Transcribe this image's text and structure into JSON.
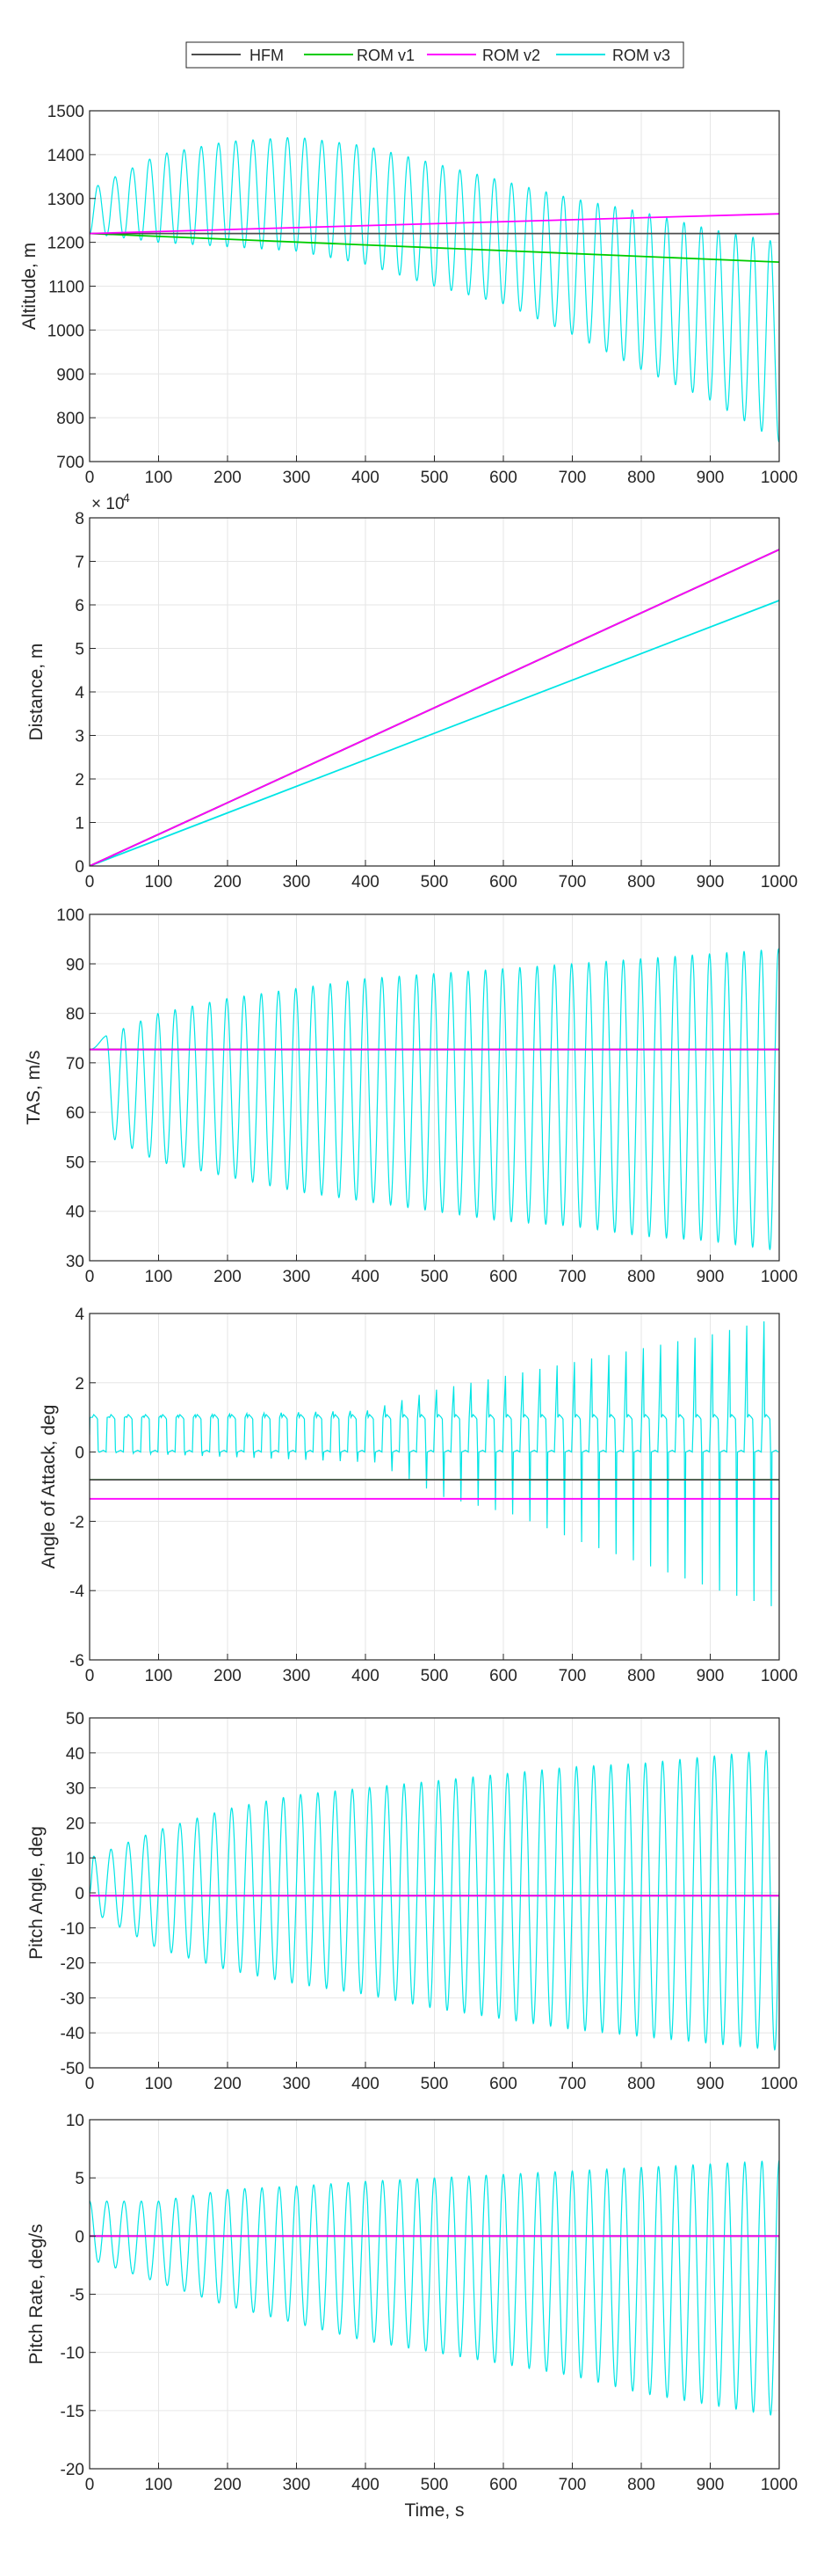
{
  "chart_data": [
    {
      "type": "line",
      "ylabel": "Altitude, m",
      "xlabel": "",
      "xlim": [
        0,
        1000
      ],
      "ylim": [
        700,
        1500
      ],
      "xticks": [
        0,
        100,
        200,
        300,
        400,
        500,
        600,
        700,
        800,
        900,
        1000
      ],
      "yticks": [
        700,
        800,
        900,
        1000,
        1100,
        1200,
        1300,
        1400,
        1500
      ],
      "grid": true,
      "legend": "top-center",
      "series": [
        {
          "name": "HFM",
          "color": "#4d4d4d",
          "x": [
            0,
            1000
          ],
          "y": [
            1220,
            1220
          ]
        },
        {
          "name": "ROM v1",
          "color": "#00cc00",
          "x": [
            0,
            1000
          ],
          "y": [
            1220,
            1155
          ]
        },
        {
          "name": "ROM v2",
          "color": "#ff00ff",
          "x": [
            0,
            1000
          ],
          "y": [
            1220,
            1265
          ]
        },
        {
          "name": "ROM v3",
          "color": "#00e5e5",
          "oscillation": {
            "period_s": 25,
            "start_value": 1220,
            "first_peak_s": 12,
            "upper_envelope": [
              [
                0,
                1320
              ],
              [
                100,
                1400
              ],
              [
                200,
                1430
              ],
              [
                300,
                1440
              ],
              [
                400,
                1420
              ],
              [
                500,
                1380
              ],
              [
                600,
                1340
              ],
              [
                700,
                1300
              ],
              [
                800,
                1270
              ],
              [
                900,
                1230
              ],
              [
                1000,
                1200
              ]
            ],
            "lower_envelope": [
              [
                0,
                1220
              ],
              [
                100,
                1200
              ],
              [
                200,
                1190
              ],
              [
                300,
                1180
              ],
              [
                400,
                1150
              ],
              [
                500,
                1100
              ],
              [
                600,
                1060
              ],
              [
                700,
                990
              ],
              [
                800,
                910
              ],
              [
                900,
                840
              ],
              [
                1000,
                745
              ]
            ]
          }
        }
      ]
    },
    {
      "type": "line",
      "ylabel": "Distance, m",
      "xlabel": "",
      "exponent": {
        "base": "× 10",
        "power": "4"
      },
      "xlim": [
        0,
        1000
      ],
      "ylim": [
        0,
        8
      ],
      "xticks": [
        0,
        100,
        200,
        300,
        400,
        500,
        600,
        700,
        800,
        900,
        1000
      ],
      "yticks": [
        0,
        1,
        2,
        3,
        4,
        5,
        6,
        7,
        8
      ],
      "grid": true,
      "series": [
        {
          "name": "HFM",
          "color": "#4d4d4d",
          "x": [
            0,
            1000
          ],
          "y": [
            0,
            7.27
          ]
        },
        {
          "name": "ROM v1",
          "color": "#00cc00",
          "x": [
            0,
            1000
          ],
          "y": [
            0,
            7.27
          ]
        },
        {
          "name": "ROM v2",
          "color": "#ff00ff",
          "x": [
            0,
            1000
          ],
          "y": [
            0,
            7.27
          ]
        },
        {
          "name": "ROM v3",
          "color": "#00e5e5",
          "x": [
            0,
            1000
          ],
          "y": [
            0,
            6.1
          ]
        }
      ]
    },
    {
      "type": "line",
      "ylabel": "TAS, m/s",
      "xlabel": "",
      "xlim": [
        0,
        1000
      ],
      "ylim": [
        30,
        100
      ],
      "xticks": [
        0,
        100,
        200,
        300,
        400,
        500,
        600,
        700,
        800,
        900,
        1000
      ],
      "yticks": [
        30,
        40,
        50,
        60,
        70,
        80,
        90,
        100
      ],
      "grid": true,
      "series": [
        {
          "name": "HFM",
          "color": "#4d4d4d",
          "x": [
            0,
            1000
          ],
          "y": [
            72.7,
            72.7
          ]
        },
        {
          "name": "ROM v1",
          "color": "#00cc00",
          "x": [
            0,
            1000
          ],
          "y": [
            72.7,
            72.7
          ]
        },
        {
          "name": "ROM v2",
          "color": "#ff00ff",
          "x": [
            0,
            1000
          ],
          "y": [
            72.7,
            72.7
          ]
        },
        {
          "name": "ROM v3",
          "color": "#00e5e5",
          "oscillation": {
            "period_s": 25,
            "start_value": 72.7,
            "first_peak_s": 24,
            "upper_envelope": [
              [
                0,
                74
              ],
              [
                100,
                80
              ],
              [
                200,
                83
              ],
              [
                300,
                85
              ],
              [
                400,
                87
              ],
              [
                500,
                88
              ],
              [
                600,
                89
              ],
              [
                700,
                90
              ],
              [
                800,
                91
              ],
              [
                900,
                92
              ],
              [
                1000,
                93
              ]
            ],
            "lower_envelope": [
              [
                0,
                57
              ],
              [
                100,
                50
              ],
              [
                200,
                47
              ],
              [
                300,
                44
              ],
              [
                400,
                42
              ],
              [
                500,
                40
              ],
              [
                600,
                38
              ],
              [
                700,
                37
              ],
              [
                800,
                35
              ],
              [
                900,
                34
              ],
              [
                1000,
                32
              ]
            ]
          }
        }
      ]
    },
    {
      "type": "line",
      "ylabel": "Angle of Attack, deg",
      "xlabel": "",
      "xlim": [
        0,
        1000
      ],
      "ylim": [
        -6,
        4
      ],
      "xticks": [
        0,
        100,
        200,
        300,
        400,
        500,
        600,
        700,
        800,
        900,
        1000
      ],
      "yticks": [
        -6,
        -4,
        -2,
        0,
        2,
        4
      ],
      "grid": true,
      "series": [
        {
          "name": "HFM",
          "color": "#4d4d4d",
          "x": [
            0,
            1000
          ],
          "y": [
            -0.8,
            -0.8
          ]
        },
        {
          "name": "ROM v1",
          "color": "#00cc00",
          "x": [
            0,
            1000
          ],
          "y": [
            -0.8,
            -0.8
          ]
        },
        {
          "name": "ROM v2",
          "color": "#ff00ff",
          "x": [
            0,
            1000
          ],
          "y": [
            -1.35,
            -1.35
          ]
        },
        {
          "name": "ROM v3",
          "color": "#00e5e5",
          "pulses": {
            "period_s": 25,
            "low": 0,
            "high": 1,
            "spike_up": [
              [
                0,
                1
              ],
              [
                400,
                1.2
              ],
              [
                500,
                1.8
              ],
              [
                600,
                2.2
              ],
              [
                700,
                2.6
              ],
              [
                800,
                3.0
              ],
              [
                900,
                3.4
              ],
              [
                1000,
                3.9
              ]
            ],
            "spike_down": [
              [
                0,
                0
              ],
              [
                400,
                -0.3
              ],
              [
                500,
                -1.3
              ],
              [
                600,
                -1.8
              ],
              [
                700,
                -2.6
              ],
              [
                800,
                -3.3
              ],
              [
                900,
                -4.0
              ],
              [
                1000,
                -4.6
              ]
            ]
          }
        }
      ]
    },
    {
      "type": "line",
      "ylabel": "Pitch Angle, deg",
      "xlabel": "",
      "xlim": [
        0,
        1000
      ],
      "ylim": [
        -50,
        50
      ],
      "xticks": [
        0,
        100,
        200,
        300,
        400,
        500,
        600,
        700,
        800,
        900,
        1000
      ],
      "yticks": [
        -50,
        -40,
        -30,
        -20,
        -10,
        0,
        10,
        20,
        30,
        40,
        50
      ],
      "grid": true,
      "series": [
        {
          "name": "HFM",
          "color": "#4d4d4d",
          "x": [
            0,
            1000
          ],
          "y": [
            -0.8,
            -0.8
          ]
        },
        {
          "name": "ROM v1",
          "color": "#00cc00",
          "x": [
            0,
            1000
          ],
          "y": [
            -0.8,
            -0.8
          ]
        },
        {
          "name": "ROM v2",
          "color": "#ff00ff",
          "x": [
            0,
            1000
          ],
          "y": [
            -0.8,
            -0.8
          ]
        },
        {
          "name": "ROM v3",
          "color": "#00e5e5",
          "oscillation": {
            "period_s": 25,
            "start_value": 0,
            "first_peak_s": 6,
            "upper_envelope": [
              [
                0,
                10
              ],
              [
                100,
                18
              ],
              [
                200,
                24
              ],
              [
                300,
                28
              ],
              [
                400,
                30
              ],
              [
                500,
                32
              ],
              [
                600,
                34
              ],
              [
                700,
                36
              ],
              [
                800,
                37
              ],
              [
                900,
                39
              ],
              [
                1000,
                41
              ]
            ],
            "lower_envelope": [
              [
                0,
                -5
              ],
              [
                100,
                -16
              ],
              [
                200,
                -22
              ],
              [
                300,
                -26
              ],
              [
                400,
                -29
              ],
              [
                500,
                -33
              ],
              [
                600,
                -36
              ],
              [
                700,
                -39
              ],
              [
                800,
                -41
              ],
              [
                900,
                -43
              ],
              [
                1000,
                -45
              ]
            ]
          }
        }
      ]
    },
    {
      "type": "line",
      "ylabel": "Pitch Rate, deg/s",
      "xlabel": "Time, s",
      "xlim": [
        0,
        1000
      ],
      "ylim": [
        -20,
        10
      ],
      "xticks": [
        0,
        100,
        200,
        300,
        400,
        500,
        600,
        700,
        800,
        900,
        1000
      ],
      "yticks": [
        -20,
        -15,
        -10,
        -5,
        0,
        5,
        10
      ],
      "grid": true,
      "series": [
        {
          "name": "HFM",
          "color": "#4d4d4d",
          "x": [
            0,
            1000
          ],
          "y": [
            0,
            0
          ]
        },
        {
          "name": "ROM v1",
          "color": "#00cc00",
          "x": [
            0,
            1000
          ],
          "y": [
            0,
            0
          ]
        },
        {
          "name": "ROM v2",
          "color": "#ff00ff",
          "x": [
            0,
            1000
          ],
          "y": [
            0,
            0
          ]
        },
        {
          "name": "ROM v3",
          "color": "#00e5e5",
          "oscillation": {
            "period_s": 25,
            "start_value": 3,
            "first_peak_s": 0,
            "upper_envelope": [
              [
                0,
                3
              ],
              [
                100,
                3
              ],
              [
                200,
                4
              ],
              [
                300,
                4.3
              ],
              [
                400,
                4.7
              ],
              [
                500,
                5
              ],
              [
                600,
                5.3
              ],
              [
                700,
                5.6
              ],
              [
                800,
                5.9
              ],
              [
                900,
                6.2
              ],
              [
                1000,
                6.5
              ]
            ],
            "lower_envelope": [
              [
                0,
                -2
              ],
              [
                100,
                -4
              ],
              [
                200,
                -6
              ],
              [
                300,
                -7.5
              ],
              [
                400,
                -9
              ],
              [
                500,
                -10
              ],
              [
                600,
                -11
              ],
              [
                700,
                -12
              ],
              [
                800,
                -13.5
              ],
              [
                900,
                -14.5
              ],
              [
                1000,
                -15.5
              ]
            ]
          }
        }
      ]
    }
  ]
}
